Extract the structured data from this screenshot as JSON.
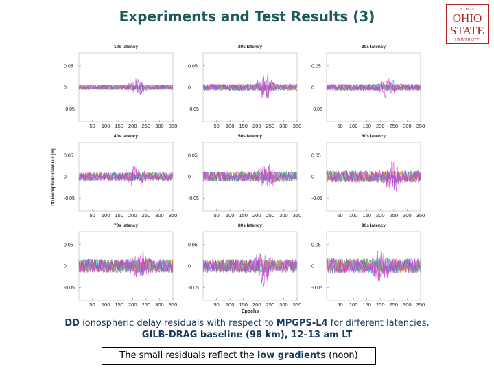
{
  "page": {
    "title": "Experiments and Test Results (3)"
  },
  "logo": {
    "line1": "T · H · E",
    "line2": "OHIO",
    "line3": "STATE",
    "line4": "UNIVERSITY",
    "color": "#b22222"
  },
  "caption": {
    "prefix": "DD",
    "mid1": " ionospheric delay residuals with respect to ",
    "ref": "MPGPS-L4",
    "mid2": " for different latencies,",
    "line2": "GILB-DRAG baseline (98 km), 12–13 am LT"
  },
  "callout": {
    "pre": "The small residuals reflect the ",
    "emph": "low gradients",
    "post": " (noon)"
  },
  "colors": {
    "title": "#1f5a5a",
    "caption": "#1a3a5a",
    "series": [
      "#ff5a5a",
      "#3a8a3a",
      "#4a7acc",
      "#e0a020",
      "#50c8c8",
      "#9a50c8",
      "#d040d0"
    ]
  },
  "chart_data": {
    "type": "line",
    "grid": false,
    "ylabel": "DD ionospheric residuals [m]",
    "xlabel": "Epochs",
    "xlim": [
      0,
      350
    ],
    "ylim": [
      -0.08,
      0.08
    ],
    "xticks": [
      50,
      100,
      150,
      200,
      250,
      300,
      350
    ],
    "yticks": [
      0.05,
      0,
      -0.05
    ],
    "ytick_labels": [
      "0.05",
      "0",
      "-0.05"
    ],
    "panels": [
      {
        "title": "10s latency",
        "amp": 0.006,
        "spike_center": 215,
        "spike_amp": 0.025
      },
      {
        "title": "20s latency",
        "amp": 0.008,
        "spike_center": 230,
        "spike_amp": 0.035
      },
      {
        "title": "30s latency",
        "amp": 0.008,
        "spike_center": 225,
        "spike_amp": 0.03
      },
      {
        "title": "40s latency",
        "amp": 0.01,
        "spike_center": 215,
        "spike_amp": 0.03
      },
      {
        "title": "50s latency",
        "amp": 0.012,
        "spike_center": 240,
        "spike_amp": 0.03
      },
      {
        "title": "60s latency",
        "amp": 0.014,
        "spike_center": 250,
        "spike_amp": 0.035
      },
      {
        "title": "70s latency",
        "amp": 0.016,
        "spike_center": 230,
        "spike_amp": 0.04
      },
      {
        "title": "80s latency",
        "amp": 0.016,
        "spike_center": 225,
        "spike_amp": 0.04
      },
      {
        "title": "90s latency",
        "amp": 0.018,
        "spike_center": 205,
        "spike_amp": 0.04
      }
    ]
  }
}
